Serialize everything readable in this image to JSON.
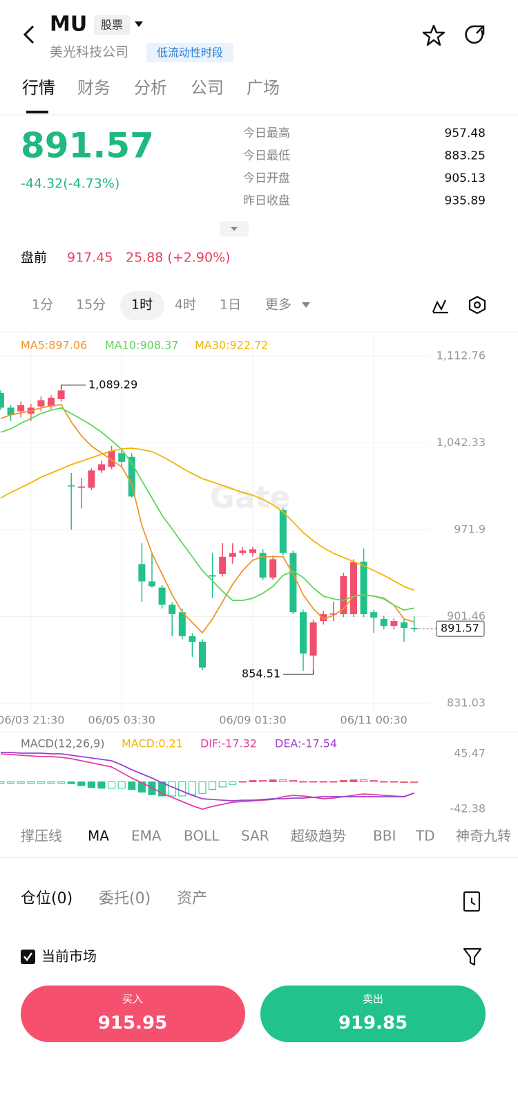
{
  "header": {
    "symbol": "MU",
    "badge": "股票",
    "company": "美光科技公司",
    "session": "低流动性时段"
  },
  "tabs": [
    "行情",
    "财务",
    "分析",
    "公司",
    "广场"
  ],
  "quote": {
    "price": 891.57,
    "change": "-44.32(-4.73%)",
    "stats": [
      {
        "label": "今日最高",
        "value": 957.48
      },
      {
        "label": "今日最低",
        "value": 883.25
      },
      {
        "label": "今日开盘",
        "value": 905.13
      },
      {
        "label": "昨日收盘",
        "value": 935.89
      }
    ]
  },
  "premarket": {
    "label": "盘前",
    "price": 917.45,
    "change": "25.88 (+2.90%)"
  },
  "intervals": [
    "1分",
    "15分",
    "1时",
    "4时",
    "1日",
    "更多"
  ],
  "watermark": "Gate",
  "chart_data": {
    "type": "candlestick",
    "up_color": "#f0506e",
    "down_color": "#22c08a",
    "ylim": [
      831.03,
      1112.76
    ],
    "yticks": [
      {
        "value": 1112.76,
        "label": "1,112.76"
      },
      {
        "value": 1042.33,
        "label": "1,042.33"
      },
      971.9,
      901.46,
      831.03
    ],
    "categories": [
      null,
      null,
      null,
      "06/03 21:30",
      null,
      null,
      null,
      null,
      null,
      null,
      null,
      null,
      "06/05 03:30",
      null,
      null,
      null,
      null,
      null,
      null,
      null,
      null,
      null,
      null,
      null,
      null,
      "06/09 01:30",
      null,
      null,
      null,
      null,
      null,
      null,
      null,
      null,
      null,
      null,
      null,
      "06/11 00:30",
      null,
      null,
      null,
      null
    ],
    "candles": [
      {
        "o": 1083,
        "h": 1085,
        "l": 1069,
        "c": 1071
      },
      {
        "o": 1071,
        "h": 1073,
        "l": 1060,
        "c": 1065
      },
      {
        "o": 1068,
        "h": 1076,
        "l": 1063,
        "c": 1073
      },
      {
        "o": 1066,
        "h": 1074,
        "l": 1060,
        "c": 1071
      },
      {
        "o": 1072,
        "h": 1080,
        "l": 1068,
        "c": 1077
      },
      {
        "o": 1072,
        "h": 1081,
        "l": 1070,
        "c": 1079
      },
      {
        "o": 1078,
        "h": 1089.29,
        "l": 1076,
        "c": 1085
      },
      {
        "o": 1008,
        "h": 1018,
        "l": 972,
        "c": 1007
      },
      {
        "o": 1006,
        "h": 1014,
        "l": 989,
        "c": 1007
      },
      {
        "o": 1006,
        "h": 1022,
        "l": 1004,
        "c": 1020
      },
      {
        "o": 1020,
        "h": 1028,
        "l": 1018,
        "c": 1025
      },
      {
        "o": 1023,
        "h": 1040,
        "l": 1021,
        "c": 1036
      },
      {
        "o": 1034,
        "h": 1037,
        "l": 1022,
        "c": 1027
      },
      {
        "o": 1031,
        "h": 1034,
        "l": 998,
        "c": 999
      },
      {
        "o": 944,
        "h": 961,
        "l": 913.5,
        "c": 930
      },
      {
        "o": 930,
        "h": 953,
        "l": 925,
        "c": 926
      },
      {
        "o": 925,
        "h": 927,
        "l": 908,
        "c": 911
      },
      {
        "o": 911,
        "h": 913,
        "l": 885.5,
        "c": 903.5
      },
      {
        "o": 905,
        "h": 908,
        "l": 883,
        "c": 885.5
      },
      {
        "o": 885.5,
        "h": 888,
        "l": 868.6,
        "c": 881
      },
      {
        "o": 881,
        "h": 883,
        "l": 858,
        "c": 860
      },
      {
        "o": 935,
        "h": 953,
        "l": 916.3,
        "c": 934
      },
      {
        "o": 936,
        "h": 961.2,
        "l": 934,
        "c": 950
      },
      {
        "o": 950,
        "h": 961,
        "l": 944.4,
        "c": 953
      },
      {
        "o": 953,
        "h": 958,
        "l": 951,
        "c": 955
      },
      {
        "o": 953,
        "h": 958,
        "l": 950,
        "c": 956
      },
      {
        "o": 953,
        "h": 956,
        "l": 931,
        "c": 933
      },
      {
        "o": 933,
        "h": 951,
        "l": 931,
        "c": 948
      },
      {
        "o": 988,
        "h": 990,
        "l": 951,
        "c": 953
      },
      {
        "o": 953,
        "h": 955,
        "l": 903.5,
        "c": 905
      },
      {
        "o": 905,
        "h": 907,
        "l": 857.4,
        "c": 871.5
      },
      {
        "o": 869.8,
        "h": 899,
        "l": 854.51,
        "c": 896.7
      },
      {
        "o": 897.8,
        "h": 906,
        "l": 895,
        "c": 903.4
      },
      {
        "o": 903,
        "h": 913.5,
        "l": 897.8,
        "c": 904
      },
      {
        "o": 903.4,
        "h": 937,
        "l": 901,
        "c": 934.3
      },
      {
        "o": 903.4,
        "h": 948,
        "l": 901,
        "c": 945.5
      },
      {
        "o": 946,
        "h": 956.8,
        "l": 901,
        "c": 903.4
      },
      {
        "o": 905,
        "h": 907,
        "l": 888.3,
        "c": 900.6
      },
      {
        "o": 899.5,
        "h": 902,
        "l": 891,
        "c": 893.9
      },
      {
        "o": 893.9,
        "h": 900,
        "l": 891,
        "c": 897.8
      },
      {
        "o": 896.7,
        "h": 899,
        "l": 881,
        "c": 892.2
      },
      {
        "o": 892.2,
        "h": 901.5,
        "l": 889,
        "c": 891.57
      }
    ],
    "high_label": "1,089.29",
    "series": [
      {
        "name": "MA5",
        "label": "MA5:897.06",
        "color": "#f0952a",
        "values": [
          1062.2,
          1065.1,
          1066.7,
          1068.4,
          1070.7,
          1072.4,
          1073.5,
          1059.4,
          1048.2,
          1039.8,
          1034.2,
          1028.6,
          1023.0,
          1008.9,
          975.3,
          952.8,
          936.0,
          919.2,
          905.1,
          896.7,
          888.3,
          899.5,
          913.5,
          927.6,
          938.8,
          947.2,
          950.0,
          950.0,
          950.0,
          936.0,
          919.2,
          907.9,
          899.5,
          902.3,
          907.9,
          918.0,
          919.2,
          918.0,
          916.4,
          910.7,
          899.5,
          897.06
        ]
      },
      {
        "name": "MA10",
        "label": "MA10:908.37",
        "color": "#5cd65c",
        "values": [
          1051.0,
          1053.8,
          1058.3,
          1062.2,
          1066.2,
          1069.0,
          1070.7,
          1066.2,
          1061.7,
          1056.7,
          1051.0,
          1044.3,
          1037.0,
          1025.8,
          1011.7,
          997.7,
          983.7,
          972.5,
          961.2,
          950.0,
          938.8,
          930.4,
          921.9,
          914.6,
          914.6,
          916.3,
          920.3,
          925.9,
          934.9,
          938.2,
          933.2,
          924.7,
          918.0,
          915.8,
          914.6,
          918.0,
          919.2,
          918.0,
          915.8,
          910.7,
          906.8,
          908.37
        ]
      },
      {
        "name": "MA30",
        "label": "MA30:922.72",
        "color": "#f2b400",
        "values": [
          997.7,
          1002.2,
          1006.1,
          1010.1,
          1014.5,
          1017.9,
          1021.3,
          1024.7,
          1027.5,
          1030.3,
          1033.1,
          1035.9,
          1037.6,
          1038.1,
          1037.0,
          1035.3,
          1031.4,
          1026.9,
          1021.9,
          1017.4,
          1013.4,
          1010.6,
          1007.8,
          1005.0,
          1002.2,
          999.9,
          996.6,
          992.1,
          986.5,
          978.1,
          969.6,
          962.9,
          957.3,
          952.8,
          949.4,
          946.1,
          942.7,
          938.8,
          934.9,
          930.4,
          925.9,
          922.72
        ]
      }
    ],
    "macd": {
      "title": "MACD(12,26,9)",
      "ylim": [
        -42.38,
        45.47
      ],
      "yticks": [
        45.47,
        -42.38
      ],
      "histogram": {
        "label": "MACD:0.21",
        "color": "#f2b400",
        "values": [
          -2,
          -2,
          -2,
          -2,
          -2,
          -2,
          -2,
          -3,
          -6,
          -9,
          -10,
          -10,
          -10,
          -12,
          -16,
          -20,
          -22,
          -22,
          -22,
          -20,
          -18,
          -12,
          -8,
          -4,
          1,
          2,
          2,
          3,
          3,
          2,
          1,
          1,
          1,
          1,
          2,
          3,
          3,
          2,
          1,
          1,
          0.5,
          0.21
        ]
      },
      "dif": {
        "label": "DIF:-17.32",
        "color": "#e0409a",
        "values": [
          43.3,
          42.3,
          41.2,
          40.1,
          39.0,
          39.0,
          38.0,
          35.8,
          32.6,
          29.4,
          26.2,
          23.0,
          14.4,
          5.8,
          -1.6,
          -9.1,
          -17.7,
          -24.1,
          -30.6,
          -37.0,
          -42.4,
          -38.1,
          -34.9,
          -31.7,
          -30.6,
          -29.5,
          -28.5,
          -27.4,
          -23.1,
          -21.0,
          -22.0,
          -24.1,
          -26.3,
          -25.2,
          -23.1,
          -21.0,
          -18.8,
          -19.9,
          -21.0,
          -22.0,
          -23.1,
          -17.32
        ]
      },
      "dea": {
        "label": "DEA:-17.54",
        "color": "#a040d0",
        "values": [
          45.5,
          45.5,
          44.4,
          44.4,
          44.4,
          43.3,
          43.3,
          41.2,
          39.0,
          36.9,
          34.8,
          32.6,
          26.2,
          18.7,
          12.3,
          5.8,
          -1.6,
          -8.0,
          -14.5,
          -20.9,
          -26.3,
          -27.4,
          -28.4,
          -29.5,
          -28.4,
          -28.4,
          -27.4,
          -26.3,
          -26.3,
          -25.2,
          -25.2,
          -24.1,
          -23.1,
          -23.1,
          -23.1,
          -23.1,
          -23.1,
          -23.1,
          -23.1,
          -23.1,
          -23.1,
          -17.54
        ]
      }
    }
  },
  "indicators": [
    "撑压线",
    "MA",
    "EMA",
    "BOLL",
    "SAR",
    "超级趋势",
    "BBI",
    "TD",
    "神奇九转"
  ],
  "bottom_tabs": [
    "仓位(0)",
    "委托(0)",
    "资产"
  ],
  "filter": "当前市场",
  "buy": {
    "label": "买入",
    "price": 915.95
  },
  "sell": {
    "label": "卖出",
    "price": 919.85
  }
}
